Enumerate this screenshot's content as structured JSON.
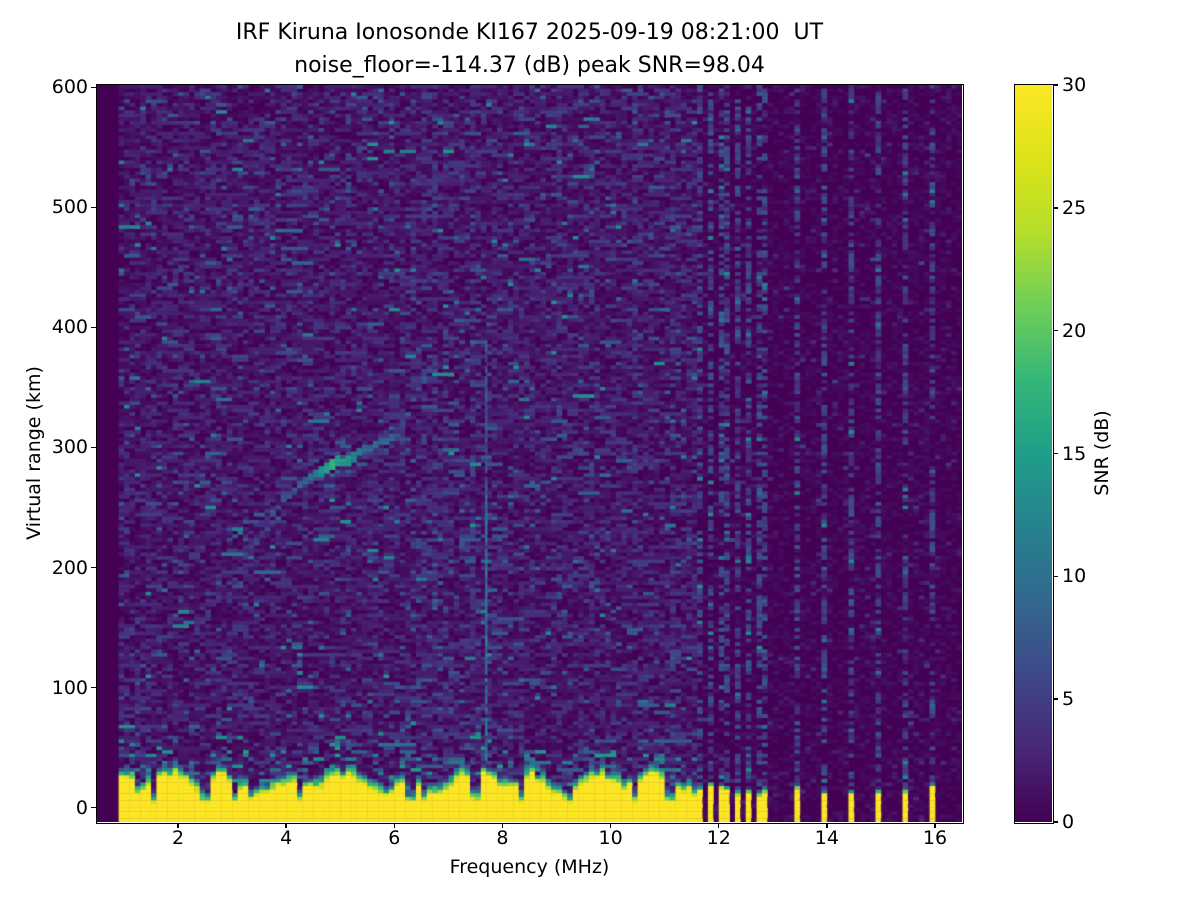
{
  "chart_data": {
    "type": "heatmap",
    "title": "IRF Kiruna Ionosonde KI167 2025-09-19 08:21:00  UT",
    "subtitle": "noise_floor=-114.37 (dB) peak SNR=98.04",
    "xlabel": "Frequency (MHz)",
    "ylabel": "Virtual range (km)",
    "colorbar_label": "SNR (dB)",
    "xlim": [
      0.5,
      16.5
    ],
    "ylim": [
      -12,
      602
    ],
    "clim": [
      0,
      30
    ],
    "xticks": [
      2,
      4,
      6,
      8,
      10,
      12,
      14,
      16
    ],
    "yticks": [
      0,
      100,
      200,
      300,
      400,
      500,
      600
    ],
    "cticks": [
      0,
      5,
      10,
      15,
      20,
      25,
      30
    ],
    "grid": false,
    "legend": "colorbar-right",
    "colormap": "viridis",
    "colormap_stops": [
      [
        0.0,
        "#440154"
      ],
      [
        0.1,
        "#482878"
      ],
      [
        0.2,
        "#3e4989"
      ],
      [
        0.3,
        "#31688e"
      ],
      [
        0.4,
        "#26828e"
      ],
      [
        0.5,
        "#1f9e89"
      ],
      [
        0.6,
        "#35b779"
      ],
      [
        0.7,
        "#6ece58"
      ],
      [
        0.8,
        "#b5de2b"
      ],
      [
        0.9,
        "#dde318"
      ],
      [
        1.0,
        "#fde725"
      ]
    ],
    "freq_bin_mhz": 0.1,
    "range_bin_km": 3,
    "features": {
      "no_data_below_mhz": 0.88,
      "ground_clutter_band": {
        "freq_start_mhz": 0.9,
        "freq_end_mhz": 11.56,
        "top_km_mean": 22,
        "top_km_min": 8,
        "top_km_max": 33,
        "tall_start_until_mhz": 1.18,
        "notch_freqs_mhz": [
          1.55,
          2.5,
          3.05,
          3.35,
          4.25,
          6.3,
          6.55,
          7.5,
          8.35,
          9.2,
          10.45,
          11.1
        ]
      },
      "echo_trace_points": [
        [
          3.38,
          217,
          5
        ],
        [
          3.46,
          222,
          6
        ],
        [
          3.54,
          228,
          6
        ],
        [
          3.62,
          234,
          7
        ],
        [
          3.7,
          240,
          7
        ],
        [
          3.78,
          247,
          8
        ],
        [
          3.86,
          252,
          7
        ],
        [
          3.95,
          257,
          8
        ],
        [
          4.05,
          262,
          8
        ],
        [
          4.15,
          266,
          8
        ],
        [
          4.25,
          270,
          9
        ],
        [
          4.35,
          274,
          9
        ],
        [
          4.45,
          277,
          10
        ],
        [
          4.55,
          280,
          12
        ],
        [
          4.65,
          283,
          15
        ],
        [
          4.72,
          285,
          17
        ],
        [
          4.8,
          287,
          16
        ],
        [
          4.88,
          289,
          18
        ],
        [
          4.96,
          290,
          17
        ],
        [
          5.04,
          291,
          16
        ],
        [
          5.12,
          292,
          15
        ],
        [
          5.22,
          294,
          13
        ],
        [
          5.32,
          296,
          12
        ],
        [
          5.42,
          298,
          11
        ],
        [
          5.52,
          300,
          10
        ],
        [
          5.62,
          302,
          11
        ],
        [
          5.72,
          304,
          10
        ],
        [
          5.82,
          306,
          10
        ],
        [
          5.92,
          308,
          9
        ],
        [
          6.02,
          312,
          8
        ],
        [
          6.12,
          320,
          7
        ],
        [
          6.22,
          330,
          7
        ],
        [
          6.32,
          340,
          6
        ],
        [
          6.42,
          350,
          7
        ],
        [
          6.52,
          357,
          8
        ],
        [
          6.62,
          364,
          6
        ],
        [
          6.78,
          372,
          6
        ],
        [
          6.92,
          380,
          6
        ],
        [
          7.08,
          386,
          5
        ],
        [
          7.25,
          389,
          5
        ],
        [
          7.42,
          390,
          8
        ]
      ],
      "vertical_interference_line": {
        "freq_mhz": 7.7,
        "km_min": 36,
        "km_max": 390,
        "snr_typ": 10
      },
      "interference_stripes": [
        {
          "freq_mhz": 11.7,
          "stub_top_km": 15
        },
        {
          "freq_mhz": 11.86,
          "stub_top_km": 18
        },
        {
          "freq_mhz": 12.05,
          "stub_top_km": 14
        },
        {
          "freq_mhz": 12.2,
          "stub_top_km": 12
        },
        {
          "freq_mhz": 12.38,
          "stub_top_km": 10
        },
        {
          "freq_mhz": 12.55,
          "stub_top_km": 14
        },
        {
          "freq_mhz": 12.72,
          "stub_top_km": 9
        },
        {
          "freq_mhz": 12.9,
          "stub_top_km": 13
        },
        {
          "freq_mhz": 13.45,
          "stub_top_km": 13
        },
        {
          "freq_mhz": 14.0,
          "stub_top_km": 9
        },
        {
          "freq_mhz": 14.45,
          "stub_top_km": 11
        },
        {
          "freq_mhz": 14.97,
          "stub_top_km": 9
        },
        {
          "freq_mhz": 15.47,
          "stub_top_km": 11
        },
        {
          "freq_mhz": 15.99,
          "stub_top_km": 14
        }
      ],
      "faint_streak_freqs_mhz": [
        6.55,
        6.75,
        6.95,
        7.45,
        9.05,
        10.45,
        11.15
      ]
    }
  }
}
